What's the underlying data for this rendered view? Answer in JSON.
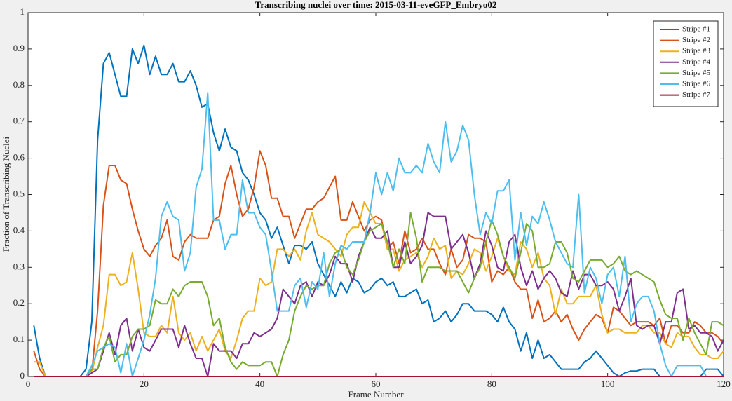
{
  "chart_data": {
    "type": "line",
    "title": "Transcribing nuclei over time: 2015-03-11-eveGFP_Embryo02",
    "xlabel": "Frame Number",
    "ylabel": "Fraction of Transcribing Nuclei",
    "xlim": [
      0,
      120
    ],
    "xticks": [
      0,
      20,
      40,
      60,
      80,
      100,
      120
    ],
    "ylim": [
      0,
      1
    ],
    "yticks": [
      0,
      0.1,
      0.2,
      0.3,
      0.4,
      0.5,
      0.6,
      0.7,
      0.8,
      0.9,
      1
    ],
    "legend": "upper right",
    "x": [
      1,
      2,
      3,
      4,
      5,
      6,
      7,
      8,
      9,
      10,
      11,
      12,
      13,
      14,
      15,
      16,
      17,
      18,
      19,
      20,
      21,
      22,
      23,
      24,
      25,
      26,
      27,
      28,
      29,
      30,
      31,
      32,
      33,
      34,
      35,
      36,
      37,
      38,
      39,
      40,
      41,
      42,
      43,
      44,
      45,
      46,
      47,
      48,
      49,
      50,
      51,
      52,
      53,
      54,
      55,
      56,
      57,
      58,
      59,
      60,
      61,
      62,
      63,
      64,
      65,
      66,
      67,
      68,
      69,
      70,
      71,
      72,
      73,
      74,
      75,
      76,
      77,
      78,
      79,
      80,
      81,
      82,
      83,
      84,
      85,
      86,
      87,
      88,
      89,
      90,
      91,
      92,
      93,
      94,
      95,
      96,
      97,
      98,
      99,
      100,
      101,
      102,
      103,
      104,
      105,
      106,
      107,
      108,
      109,
      110,
      111,
      112,
      113,
      114,
      115,
      116,
      117,
      118,
      119,
      120
    ],
    "series": [
      {
        "name": "Stripe #1",
        "color": "#0072bd",
        "values": [
          0.14,
          0.05,
          0,
          0,
          0,
          0,
          0,
          0,
          0,
          0.02,
          0.15,
          0.65,
          0.86,
          0.89,
          0.83,
          0.77,
          0.77,
          0.9,
          0.86,
          0.91,
          0.83,
          0.88,
          0.83,
          0.83,
          0.86,
          0.81,
          0.81,
          0.84,
          0.8,
          0.74,
          0.75,
          0.67,
          0.62,
          0.68,
          0.63,
          0.62,
          0.56,
          0.54,
          0.5,
          0.45,
          0.43,
          0.38,
          0.41,
          0.36,
          0.31,
          0.36,
          0.36,
          0.35,
          0.37,
          0.31,
          0.28,
          0.25,
          0.22,
          0.26,
          0.23,
          0.27,
          0.26,
          0.23,
          0.24,
          0.26,
          0.27,
          0.25,
          0.26,
          0.22,
          0.22,
          0.23,
          0.24,
          0.2,
          0.21,
          0.15,
          0.16,
          0.18,
          0.15,
          0.17,
          0.2,
          0.2,
          0.18,
          0.18,
          0.18,
          0.17,
          0.15,
          0.19,
          0.15,
          0.13,
          0.07,
          0.12,
          0.05,
          0.1,
          0.05,
          0.06,
          0.04,
          0.02,
          0.02,
          0.02,
          0.02,
          0.04,
          0.05,
          0.07,
          0.05,
          0.03,
          0.01,
          0,
          0.01,
          0.015,
          0.015,
          0.02,
          0.02,
          0.02,
          0,
          0,
          0,
          0,
          0,
          0,
          0,
          0,
          0.02,
          0.02,
          0.02,
          0
        ]
      },
      {
        "name": "Stripe #2",
        "color": "#d95319",
        "values": [
          0.07,
          0.02,
          0,
          0,
          0,
          0,
          0,
          0,
          0,
          0,
          0.01,
          0.18,
          0.47,
          0.58,
          0.58,
          0.54,
          0.53,
          0.46,
          0.4,
          0.35,
          0.33,
          0.36,
          0.38,
          0.43,
          0.33,
          0.32,
          0.37,
          0.39,
          0.38,
          0.38,
          0.38,
          0.43,
          0.44,
          0.53,
          0.58,
          0.5,
          0.44,
          0.46,
          0.52,
          0.62,
          0.58,
          0.49,
          0.49,
          0.44,
          0.44,
          0.38,
          0.42,
          0.46,
          0.46,
          0.48,
          0.49,
          0.52,
          0.55,
          0.43,
          0.43,
          0.48,
          0.44,
          0.4,
          0.43,
          0.44,
          0.43,
          0.35,
          0.37,
          0.31,
          0.4,
          0.34,
          0.35,
          0.38,
          0.35,
          0.35,
          0.31,
          0.28,
          0.35,
          0.3,
          0.32,
          0.39,
          0.38,
          0.38,
          0.37,
          0.26,
          0.29,
          0.28,
          0.3,
          0.26,
          0.24,
          0.24,
          0.16,
          0.21,
          0.15,
          0.16,
          0.18,
          0.15,
          0.17,
          0.13,
          0.1,
          0.13,
          0.15,
          0.17,
          0.16,
          0.12,
          0.19,
          0.18,
          0.16,
          0.14,
          0.15,
          0.15,
          0.15,
          0.14,
          0.16,
          0.09,
          0.14,
          0.14,
          0.12,
          0.12,
          0.15,
          0.14,
          0.12,
          0.12,
          0.11,
          0.09
        ]
      },
      {
        "name": "Stripe #3",
        "color": "#edb120",
        "values": [
          0.04,
          0.04,
          0,
          0,
          0,
          0,
          0,
          0,
          0,
          0,
          0.01,
          0.08,
          0.14,
          0.28,
          0.28,
          0.25,
          0.26,
          0.34,
          0.24,
          0.12,
          0.11,
          0.11,
          0.14,
          0.12,
          0.22,
          0.12,
          0.1,
          0.12,
          0.07,
          0.11,
          0.07,
          0.1,
          0.13,
          0.07,
          0.05,
          0.1,
          0.16,
          0.18,
          0.18,
          0.27,
          0.25,
          0.26,
          0.35,
          0.35,
          0.33,
          0.35,
          0.32,
          0.4,
          0.45,
          0.39,
          0.38,
          0.37,
          0.35,
          0.33,
          0.39,
          0.41,
          0.41,
          0.48,
          0.45,
          0.42,
          0.42,
          0.35,
          0.35,
          0.29,
          0.32,
          0.33,
          0.34,
          0.3,
          0.33,
          0.38,
          0.35,
          0.36,
          0.27,
          0.29,
          0.28,
          0.31,
          0.35,
          0.34,
          0.29,
          0.33,
          0.38,
          0.33,
          0.29,
          0.28,
          0.37,
          0.35,
          0.3,
          0.34,
          0.27,
          0.25,
          0.17,
          0.24,
          0.2,
          0.2,
          0.22,
          0.22,
          0.22,
          0.25,
          0.17,
          0.12,
          0.13,
          0.13,
          0.12,
          0.12,
          0.12,
          0.14,
          0.14,
          0.12,
          0.12,
          0.09,
          0.08,
          0.12,
          0.11,
          0.11,
          0.08,
          0.06,
          0.06,
          0.05,
          0.05,
          0.07
        ]
      },
      {
        "name": "Stripe #4",
        "color": "#7e2f8e",
        "values": [
          0,
          0,
          0,
          0,
          0,
          0,
          0,
          0,
          0,
          0,
          0.01,
          0.02,
          0.07,
          0.12,
          0.06,
          0.14,
          0.16,
          0.07,
          0.13,
          0.08,
          0.07,
          0.1,
          0.13,
          0.13,
          0.13,
          0.08,
          0.14,
          0.09,
          0.05,
          0.05,
          0,
          0.09,
          0.07,
          0.07,
          0.07,
          0.05,
          0.09,
          0.09,
          0.12,
          0.11,
          0.12,
          0.13,
          0.16,
          0.24,
          0.22,
          0.2,
          0.25,
          0.26,
          0.22,
          0.26,
          0.25,
          0.28,
          0.33,
          0.31,
          0.31,
          0.26,
          0.33,
          0.37,
          0.41,
          0.38,
          0.38,
          0.4,
          0.3,
          0.3,
          0.37,
          0.31,
          0.33,
          0.36,
          0.45,
          0.44,
          0.44,
          0.44,
          0.35,
          0.37,
          0.39,
          0.34,
          0.27,
          0.31,
          0.4,
          0.36,
          0.3,
          0.29,
          0.37,
          0.39,
          0.3,
          0.25,
          0.29,
          0.24,
          0.27,
          0.29,
          0.27,
          0.23,
          0.22,
          0.29,
          0.24,
          0.28,
          0.28,
          0.25,
          0.25,
          0.26,
          0.24,
          0.18,
          0.22,
          0.27,
          0.14,
          0.13,
          0.14,
          0.14,
          0.09,
          0.15,
          0.15,
          0.23,
          0.24,
          0.13,
          0.14,
          0.12,
          0.12,
          0.11,
          0.07,
          0.1
        ]
      },
      {
        "name": "Stripe #5",
        "color": "#77ac30",
        "values": [
          0,
          0,
          0,
          0,
          0,
          0,
          0,
          0,
          0,
          0,
          0.02,
          0.02,
          0.08,
          0.11,
          0.04,
          0.06,
          0.06,
          0.11,
          0.13,
          0.13,
          0.14,
          0.21,
          0.2,
          0.2,
          0.24,
          0.22,
          0.25,
          0.26,
          0.26,
          0.26,
          0.22,
          0.14,
          0.16,
          0.08,
          0.04,
          0.02,
          0.04,
          0.03,
          0.03,
          0.03,
          0.04,
          0.04,
          0,
          0.06,
          0.1,
          0.18,
          0.22,
          0.25,
          0.24,
          0.25,
          0.25,
          0.31,
          0.34,
          0.35,
          0.3,
          0.28,
          0.32,
          0.37,
          0.4,
          0.41,
          0.42,
          0.37,
          0.3,
          0.35,
          0.31,
          0.45,
          0.38,
          0.26,
          0.3,
          0.3,
          0.3,
          0.29,
          0.29,
          0.29,
          0.26,
          0.23,
          0.27,
          0.3,
          0.37,
          0.43,
          0.39,
          0.33,
          0.3,
          0.27,
          0.34,
          0.42,
          0.4,
          0.3,
          0.3,
          0.31,
          0.37,
          0.37,
          0.34,
          0.27,
          0.26,
          0.29,
          0.32,
          0.32,
          0.32,
          0.3,
          0.31,
          0.33,
          0.29,
          0.28,
          0.29,
          0.28,
          0.27,
          0.26,
          0.21,
          0.17,
          0.16,
          0.16,
          0.1,
          0.16,
          0.12,
          0.09,
          0.06,
          0.15,
          0.15,
          0.14
        ]
      },
      {
        "name": "Stripe #6",
        "color": "#4dbeee",
        "values": [
          0,
          0,
          0,
          0,
          0,
          0,
          0,
          0,
          0,
          0,
          0.03,
          0.07,
          0.08,
          0.09,
          0.08,
          0.01,
          0.09,
          0,
          0.05,
          0.1,
          0.17,
          0.27,
          0.44,
          0.48,
          0.44,
          0.43,
          0.29,
          0.34,
          0.52,
          0.57,
          0.78,
          0.43,
          0.43,
          0.35,
          0.39,
          0.39,
          0.54,
          0.45,
          0.45,
          0.41,
          0.39,
          0.29,
          0.18,
          0.18,
          0.18,
          0.25,
          0.27,
          0.19,
          0.26,
          0.24,
          0.34,
          0.22,
          0.31,
          0.36,
          0.35,
          0.37,
          0.37,
          0.37,
          0.45,
          0.56,
          0.5,
          0.56,
          0.51,
          0.6,
          0.56,
          0.56,
          0.58,
          0.56,
          0.64,
          0.59,
          0.56,
          0.7,
          0.59,
          0.62,
          0.69,
          0.65,
          0.5,
          0.39,
          0.45,
          0.42,
          0.51,
          0.51,
          0.54,
          0.32,
          0.45,
          0.36,
          0.44,
          0.42,
          0.48,
          0.43,
          0.37,
          0.34,
          0.31,
          0.3,
          0.5,
          0.23,
          0.3,
          0.27,
          0.2,
          0.28,
          0.3,
          0.22,
          0.33,
          0.15,
          0.2,
          0.22,
          0.22,
          0.18,
          0.09,
          0.03,
          0,
          0.03,
          0.03,
          0.03,
          0.03,
          0.03,
          0,
          0,
          0,
          0
        ]
      },
      {
        "name": "Stripe #7",
        "color": "#a2142f",
        "values": [
          0,
          0,
          0,
          0,
          0,
          0,
          0,
          0,
          0,
          0,
          0,
          0,
          0,
          0,
          0,
          0,
          0,
          0,
          0,
          0,
          0,
          0,
          0,
          0,
          0,
          0,
          0,
          0,
          0,
          0,
          0,
          0,
          0,
          0,
          0,
          0,
          0,
          0,
          0,
          0,
          0,
          0,
          0,
          0,
          0,
          0,
          0,
          0,
          0,
          0,
          0,
          0,
          0,
          0,
          0,
          0,
          0,
          0,
          0,
          0,
          0,
          0,
          0,
          0,
          0,
          0,
          0,
          0,
          0,
          0,
          0,
          0,
          0,
          0,
          0,
          0,
          0,
          0,
          0,
          0,
          0,
          0,
          0,
          0,
          0,
          0,
          0,
          0,
          0,
          0,
          0,
          0,
          0,
          0,
          0,
          0,
          0,
          0,
          0,
          0,
          0,
          0,
          0,
          0,
          0,
          0,
          0,
          0,
          0,
          0,
          0,
          0,
          0,
          0,
          0,
          0,
          0,
          0,
          0,
          0
        ]
      }
    ]
  }
}
